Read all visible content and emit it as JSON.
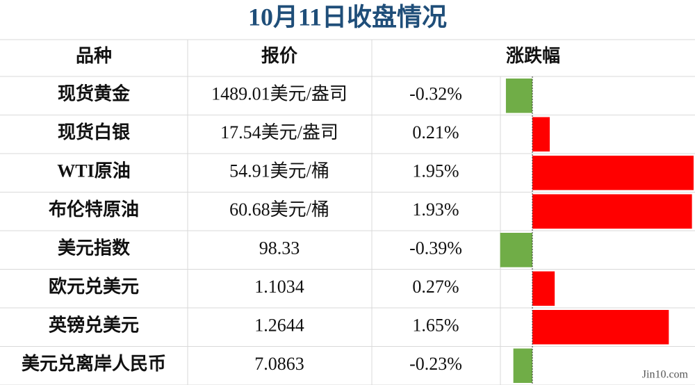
{
  "header": {
    "title": "10月11日收盘情况"
  },
  "table": {
    "columns": [
      "品种",
      "报价",
      "涨跌幅"
    ],
    "rows": [
      {
        "name": "现货黄金",
        "quote": "1489.01美元/盎司",
        "change": {
          "value": -0.32,
          "label": "-0.32%"
        }
      },
      {
        "name": "现货白银",
        "quote": "17.54美元/盎司",
        "change": {
          "value": 0.21,
          "label": "0.21%"
        }
      },
      {
        "name": "WTI原油",
        "quote": "54.91美元/桶",
        "change": {
          "value": 1.95,
          "label": "1.95%"
        }
      },
      {
        "name": "布伦特原油",
        "quote": "60.68美元/桶",
        "change": {
          "value": 1.93,
          "label": "1.93%"
        }
      },
      {
        "name": "美元指数",
        "quote": "98.33",
        "change": {
          "value": -0.39,
          "label": "-0.39%"
        }
      },
      {
        "name": "欧元兑美元",
        "quote": "1.1034",
        "change": {
          "value": 0.27,
          "label": "0.27%"
        }
      },
      {
        "name": "英镑兑美元",
        "quote": "1.2644",
        "change": {
          "value": 1.65,
          "label": "1.65%"
        }
      },
      {
        "name": "美元兑离岸人民币",
        "quote": "7.0863",
        "change": {
          "value": -0.23,
          "label": "-0.23%"
        }
      }
    ],
    "colors": {
      "up": "#ff0000",
      "down": "#70ad47"
    }
  },
  "watermark": "Jin10.com"
}
